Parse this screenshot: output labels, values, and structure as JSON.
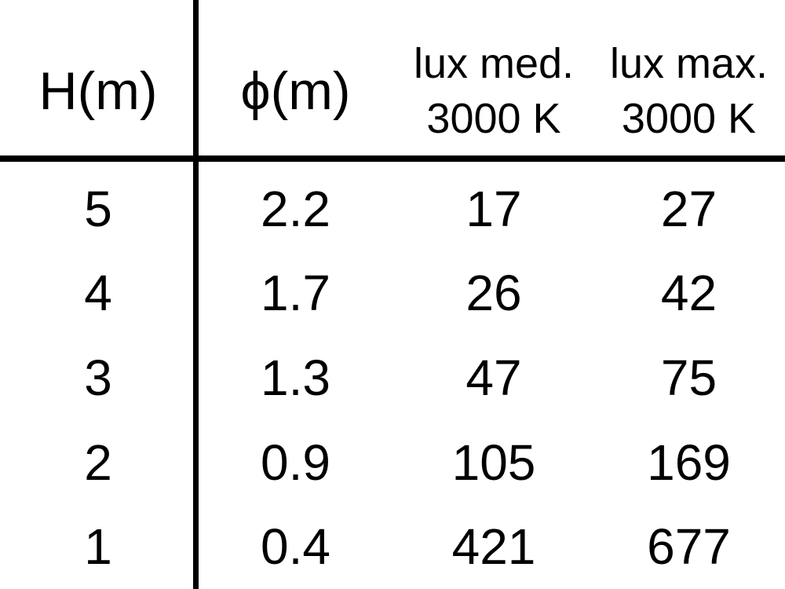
{
  "chart_data": {
    "type": "table",
    "columns": [
      {
        "label": "H(m)",
        "sublabel": ""
      },
      {
        "label": "ϕ(m)",
        "sublabel": ""
      },
      {
        "label": "lux med.",
        "sublabel": "3000 K"
      },
      {
        "label": "lux max.",
        "sublabel": "3000 K"
      }
    ],
    "rows": [
      [
        "5",
        "2.2",
        "17",
        "27"
      ],
      [
        "4",
        "1.7",
        "26",
        "42"
      ],
      [
        "3",
        "1.3",
        "47",
        "75"
      ],
      [
        "2",
        "0.9",
        "105",
        "169"
      ],
      [
        "1",
        "0.4",
        "421",
        "677"
      ]
    ]
  },
  "colors": {
    "text": "#000000",
    "background": "#ffffff",
    "rule": "#000000"
  }
}
